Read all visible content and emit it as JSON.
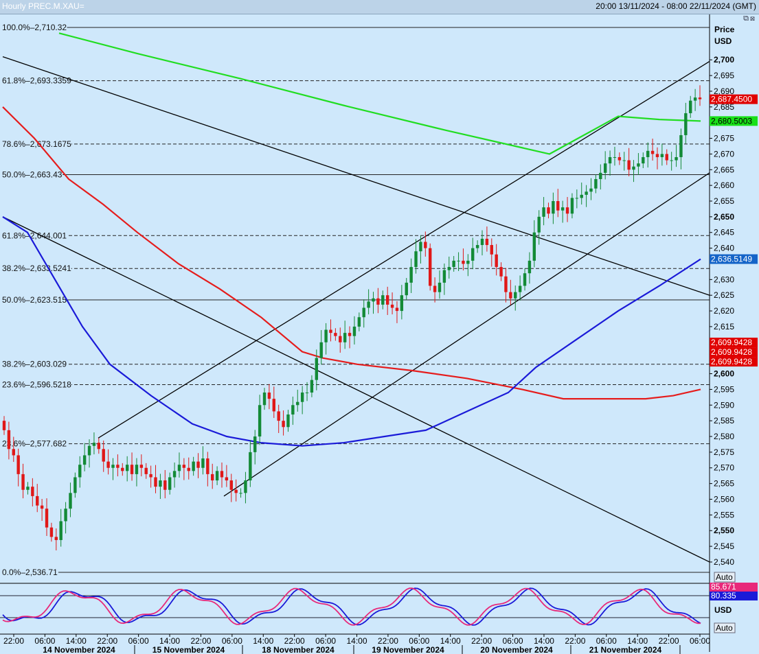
{
  "header": {
    "title": "Hourly PREC.M.XAU=",
    "range": "20:00 13/11/2024 - 08:00 22/11/2024 (GMT)",
    "window_icons": "⧉⊠"
  },
  "chart_data": {
    "type": "candlestick",
    "instrument": "PREC.M.XAU=",
    "interval": "Hourly",
    "axis_title": "Price",
    "axis_unit": "USD",
    "ylim": [
      2536,
      2711
    ],
    "y_ticks": [
      {
        "v": 2540,
        "l": "2,540",
        "b": false
      },
      {
        "v": 2545,
        "l": "2,545",
        "b": false
      },
      {
        "v": 2550,
        "l": "2,550",
        "b": true
      },
      {
        "v": 2555,
        "l": "2,555",
        "b": false
      },
      {
        "v": 2560,
        "l": "2,560",
        "b": false
      },
      {
        "v": 2565,
        "l": "2,565",
        "b": false
      },
      {
        "v": 2570,
        "l": "2,570",
        "b": false
      },
      {
        "v": 2575,
        "l": "2,575",
        "b": false
      },
      {
        "v": 2580,
        "l": "2,580",
        "b": false
      },
      {
        "v": 2585,
        "l": "2,585",
        "b": false
      },
      {
        "v": 2590,
        "l": "2,590",
        "b": false
      },
      {
        "v": 2595,
        "l": "2,595",
        "b": false
      },
      {
        "v": 2600,
        "l": "2,600",
        "b": true
      },
      {
        "v": 2605,
        "l": "2,605",
        "b": false
      },
      {
        "v": 2615,
        "l": "2,615",
        "b": false
      },
      {
        "v": 2620,
        "l": "2,620",
        "b": false
      },
      {
        "v": 2625,
        "l": "2,625",
        "b": false
      },
      {
        "v": 2630,
        "l": "2,630",
        "b": false
      },
      {
        "v": 2640,
        "l": "2,640",
        "b": false
      },
      {
        "v": 2645,
        "l": "2,645",
        "b": false
      },
      {
        "v": 2650,
        "l": "2,650",
        "b": true
      },
      {
        "v": 2655,
        "l": "2,655",
        "b": false
      },
      {
        "v": 2660,
        "l": "2,660",
        "b": false
      },
      {
        "v": 2665,
        "l": "2,665",
        "b": false
      },
      {
        "v": 2670,
        "l": "2,670",
        "b": false
      },
      {
        "v": 2675,
        "l": "2,675",
        "b": false
      },
      {
        "v": 2685,
        "l": "2,685",
        "b": false
      },
      {
        "v": 2690,
        "l": "2,690",
        "b": false
      },
      {
        "v": 2695,
        "l": "2,695",
        "b": false
      },
      {
        "v": 2700,
        "l": "2,700",
        "b": true
      }
    ],
    "x_time_labels": [
      "22:00",
      "06:00",
      "14:00",
      "22:00",
      "06:00",
      "14:00",
      "22:00",
      "06:00",
      "14:00",
      "22:00",
      "06:00",
      "14:00",
      "22:00",
      "06:00",
      "14:00",
      "22:00",
      "06:00",
      "14:00",
      "22:00",
      "06:00",
      "14:00",
      "22:00",
      "06:00"
    ],
    "x_date_labels": [
      "14 November 2024",
      "15 November 2024",
      "18 November 2024",
      "19 November 2024",
      "20 November 2024",
      "21 November 2024"
    ],
    "fib_levels": [
      {
        "label": "100.0%–2,710.32",
        "value": 2710.32,
        "dashed": false
      },
      {
        "label": "61.8%–2,693.3359",
        "value": 2693.3359,
        "dashed": true
      },
      {
        "label": "78.6%–2,673.1675",
        "value": 2673.1675,
        "dashed": true
      },
      {
        "label": "50.0%–2,663.43",
        "value": 2663.43,
        "dashed": false
      },
      {
        "label": "61.8%–2,644.001",
        "value": 2644.001,
        "dashed": true
      },
      {
        "label": "38.2%–2,633.5241",
        "value": 2633.5241,
        "dashed": true
      },
      {
        "label": "50.0%–2,623.515",
        "value": 2623.515,
        "dashed": false
      },
      {
        "label": "38.2%–2,603.029",
        "value": 2603.029,
        "dashed": true
      },
      {
        "label": "23.6%–2,596.5218",
        "value": 2596.5218,
        "dashed": true
      },
      {
        "label": "23.6%–2,577.682",
        "value": 2577.682,
        "dashed": true
      },
      {
        "label": "0.0%–2,536.71",
        "value": 2536.71,
        "dashed": false
      }
    ],
    "price_tags": [
      {
        "label": "2,687.4500",
        "value": 2687.45,
        "bg": "#e00000",
        "fg": "#ffffff"
      },
      {
        "label": "2,680.5003",
        "value": 2680.5003,
        "bg": "#18e018",
        "fg": "#000000"
      },
      {
        "label": "2,636.5149",
        "value": 2636.5149,
        "bg": "#1464c8",
        "fg": "#ffffff"
      },
      {
        "label": "2,609.9428",
        "value": 2609.9428,
        "bg": "#e00000",
        "fg": "#ffffff"
      }
    ],
    "moving_averages": [
      {
        "name": "green",
        "color": "#22dd22",
        "points": [
          [
            86,
            2708.5
          ],
          [
            200,
            2702
          ],
          [
            350,
            2694
          ],
          [
            500,
            2685.5
          ],
          [
            650,
            2677.5
          ],
          [
            800,
            2670
          ],
          [
            900,
            2682
          ],
          [
            960,
            2681
          ],
          [
            1020,
            2680.5
          ]
        ]
      },
      {
        "name": "red",
        "color": "#e51c1c",
        "points": [
          [
            4,
            2685
          ],
          [
            50,
            2675
          ],
          [
            100,
            2662
          ],
          [
            150,
            2654
          ],
          [
            200,
            2645
          ],
          [
            260,
            2635
          ],
          [
            320,
            2627
          ],
          [
            380,
            2618
          ],
          [
            440,
            2607
          ],
          [
            470,
            2605
          ],
          [
            520,
            2603
          ],
          [
            600,
            2601
          ],
          [
            680,
            2598.5
          ],
          [
            760,
            2595
          ],
          [
            820,
            2592
          ],
          [
            880,
            2592
          ],
          [
            940,
            2592
          ],
          [
            980,
            2593
          ],
          [
            1020,
            2595
          ]
        ]
      },
      {
        "name": "blue",
        "color": "#1a1ad8",
        "points": [
          [
            4,
            2650
          ],
          [
            40,
            2645
          ],
          [
            80,
            2630
          ],
          [
            120,
            2615
          ],
          [
            160,
            2603
          ],
          [
            220,
            2593
          ],
          [
            280,
            2584
          ],
          [
            330,
            2580
          ],
          [
            380,
            2578
          ],
          [
            440,
            2577
          ],
          [
            500,
            2578
          ],
          [
            560,
            2580
          ],
          [
            620,
            2582
          ],
          [
            680,
            2588
          ],
          [
            740,
            2594
          ],
          [
            780,
            2602
          ],
          [
            840,
            2611
          ],
          [
            900,
            2620
          ],
          [
            960,
            2628
          ],
          [
            1020,
            2636.5
          ]
        ]
      }
    ],
    "trend_lines": [
      {
        "x1": 4,
        "y1": 2701,
        "x2": 1033,
        "y2": 2625
      },
      {
        "x1": 4,
        "y1": 2650,
        "x2": 1033,
        "y2": 2540
      },
      {
        "x1": 143,
        "y1": 2579.5,
        "x2": 1033,
        "y2": 2699.5
      },
      {
        "x1": 326,
        "y1": 2561,
        "x2": 1033,
        "y2": 2664
      }
    ],
    "candles_close": [
      2582,
      2576,
      2574,
      2568,
      2563,
      2564,
      2561,
      2558,
      2557,
      2551,
      2548,
      2547,
      2553,
      2557,
      2562,
      2567,
      2571,
      2574,
      2577,
      2578,
      2576,
      2572,
      2570,
      2571,
      2570,
      2569,
      2571,
      2568,
      2571,
      2570,
      2568,
      2567,
      2564,
      2566,
      2563,
      2567,
      2569,
      2571,
      2570,
      2569,
      2572,
      2570,
      2573,
      2568,
      2566,
      2569,
      2567,
      2566,
      2563,
      2562,
      2562,
      2566,
      2575,
      2580,
      2590,
      2594,
      2592,
      2588,
      2585,
      2583,
      2587,
      2590,
      2591,
      2594,
      2594,
      2598,
      2605,
      2610,
      2614,
      2613,
      2612,
      2610,
      2613,
      2612,
      2615,
      2618,
      2621,
      2623,
      2624,
      2622,
      2625,
      2622,
      2621,
      2620,
      2625,
      2629,
      2634,
      2639,
      2642,
      2640,
      2628,
      2626,
      2629,
      2633,
      2634,
      2636,
      2636,
      2635,
      2636,
      2640,
      2641,
      2643,
      2641,
      2638,
      2634,
      2631,
      2626,
      2624,
      2626,
      2628,
      2632,
      2636,
      2645,
      2650,
      2653,
      2651,
      2655,
      2652,
      2653,
      2651,
      2656,
      2656,
      2657,
      2658,
      2659,
      2662,
      2664,
      2667,
      2669,
      2669,
      2668,
      2668,
      2665,
      2666,
      2667,
      2669,
      2671,
      2670,
      2669,
      2670,
      2668,
      2668,
      2669,
      2676,
      2683,
      2687,
      2688,
      2687.45
    ]
  },
  "stochastic": {
    "label_pink": "85.671",
    "label_blue": "80.335",
    "label_blue_bg": "#1a1ad8",
    "label_pink_bg": "#e8287a",
    "unit": "USD",
    "k_color": "#1a1ad8",
    "d_color": "#e8287a"
  },
  "buttons": {
    "auto_top": "Auto",
    "auto_bottom": "Auto"
  }
}
